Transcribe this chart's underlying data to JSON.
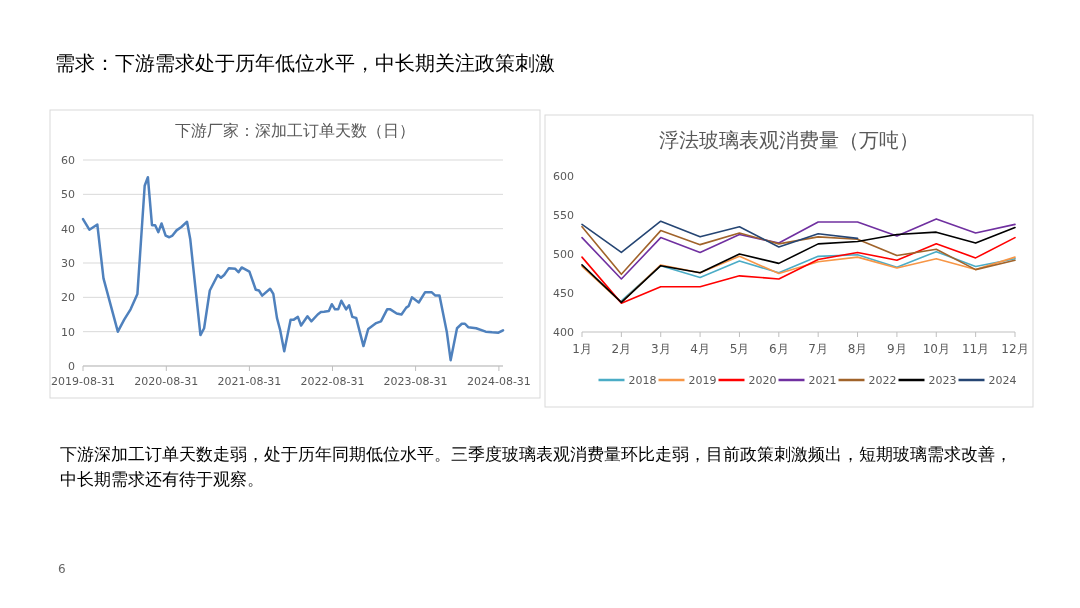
{
  "chart_data": [
    {
      "type": "line",
      "title": "下游厂家：深加工订单天数（日）",
      "annotations": [
        "需求：下游需求处于历年低位水平，中长期关注政策刺激"
      ],
      "x": [
        "2019-08-31",
        "2019-09-28",
        "2019-11-02",
        "2019-11-29",
        "2020-01-31",
        "2020-02-28",
        "2020-03-27",
        "2020-04-26",
        "2020-05-28",
        "2020-06-11",
        "2020-06-29",
        "2020-07-13",
        "2020-07-27",
        "2020-08-10",
        "2020-08-28",
        "2020-09-13",
        "2020-09-27",
        "2020-10-15",
        "2020-11-05",
        "2020-11-30",
        "2020-12-14",
        "2021-01-28",
        "2021-02-13",
        "2021-03-10",
        "2021-04-14",
        "2021-04-28",
        "2021-05-12",
        "2021-06-02",
        "2021-06-30",
        "2021-07-14",
        "2021-07-28",
        "2021-08-31",
        "2021-09-28",
        "2021-10-12",
        "2021-10-26",
        "2021-11-30",
        "2021-12-14",
        "2021-12-30",
        "2022-01-13",
        "2022-01-31",
        "2022-02-28",
        "2022-03-14",
        "2022-04-01",
        "2022-04-15",
        "2022-05-13",
        "2022-05-30",
        "2022-06-27",
        "2022-07-11",
        "2022-07-25",
        "2022-08-15",
        "2022-08-28",
        "2022-09-11",
        "2022-09-25",
        "2022-10-09",
        "2022-10-30",
        "2022-11-12",
        "2022-11-26",
        "2022-12-13",
        "2023-01-14",
        "2023-02-04",
        "2023-03-11",
        "2023-04-01",
        "2023-04-28",
        "2023-05-12",
        "2023-06-09",
        "2023-06-30",
        "2023-07-21",
        "2023-08-01",
        "2023-08-15",
        "2023-09-14",
        "2023-10-12",
        "2023-11-09",
        "2023-11-26",
        "2023-12-14",
        "2024-01-15",
        "2024-02-01",
        "2024-02-29",
        "2024-03-21",
        "2024-04-04",
        "2024-04-18",
        "2024-05-23",
        "2024-07-04",
        "2024-08-01",
        "2024-08-29",
        "2024-09-18"
      ],
      "series": [
        {
          "color": "#4f81bd",
          "values": [
            42.8,
            39.7,
            41.2,
            25.5,
            10,
            13.5,
            16.5,
            21,
            52.5,
            55,
            41,
            41,
            39,
            41.5,
            38,
            37.5,
            38,
            39.5,
            40.5,
            42,
            37,
            9,
            11,
            22,
            26.5,
            25.7,
            26.5,
            28.5,
            28.3,
            27.3,
            28.7,
            27.5,
            22.2,
            22,
            20.5,
            22.5,
            21,
            14,
            10.5,
            4.3,
            13.5,
            13.5,
            14.3,
            11.8,
            14.5,
            13,
            15,
            15.7,
            15.8,
            16,
            18,
            16.5,
            16.5,
            19,
            16.5,
            17.7,
            14.3,
            14,
            5.8,
            10.8,
            12.5,
            13,
            16.5,
            16.5,
            15.3,
            15,
            17,
            17.5,
            20,
            18.5,
            21.5,
            21.5,
            20.5,
            20.5,
            10,
            1.7,
            11,
            12.3,
            12.3,
            11.3,
            11,
            10,
            9.8,
            9.7,
            10.4
          ]
        }
      ],
      "xlim": [
        "2019-08-31",
        "2024-09-18"
      ],
      "xticks": [
        {
          "value": "2019-08-31",
          "label": "2019-08-31"
        },
        {
          "value": "2020-08-31",
          "label": "2020-08-31"
        },
        {
          "value": "2021-08-31",
          "label": "2021-08-31"
        },
        {
          "value": "2022-08-31",
          "label": "2022-08-31"
        },
        {
          "value": "2023-08-31",
          "label": "2023-08-31"
        },
        {
          "value": "2024-08-31",
          "label": "2024-08-31"
        }
      ],
      "ylim": [
        0,
        60
      ],
      "yticks": [
        0,
        10,
        20,
        30,
        40,
        50,
        60
      ],
      "grid": "y",
      "legend": false
    },
    {
      "type": "line",
      "title": "浮法玻璃表观消费量（万吨）",
      "annotations": [
        "下游深加工订单天数走弱，处于历年同期低位水平。三季度玻璃表观消费量环比走弱，目前政策刺激频出，短期玻璃需求改善，中长期需求还有待于观察。",
        "6"
      ],
      "categories": [
        "1月",
        "2月",
        "3月",
        "4月",
        "5月",
        "6月",
        "7月",
        "8月",
        "9月",
        "10月",
        "11月",
        "12月"
      ],
      "series": [
        {
          "name": "2018",
          "color": "#4bacc6",
          "values": [
            null,
            440,
            485,
            470,
            491,
            476,
            497,
            499,
            483,
            503,
            484,
            494
          ]
        },
        {
          "name": "2019",
          "color": "#f79646",
          "values": [
            484,
            438,
            486,
            476,
            497,
            475,
            490,
            496,
            482,
            494,
            480,
            496
          ]
        },
        {
          "name": "2020",
          "color": "#ff0000",
          "values": [
            496,
            437,
            458,
            458,
            472,
            468,
            493,
            502,
            492,
            513,
            495,
            521
          ]
        },
        {
          "name": "2021",
          "color": "#7030a0",
          "values": [
            521,
            468,
            521,
            502,
            525,
            514,
            541,
            541,
            523,
            545,
            527,
            538
          ]
        },
        {
          "name": "2022",
          "color": "#a0632a",
          "values": [
            535,
            474,
            530,
            512,
            527,
            513,
            522,
            519,
            498,
            506,
            480,
            492
          ]
        },
        {
          "name": "2023",
          "color": "#000000",
          "values": [
            486,
            438,
            485,
            476,
            500,
            488,
            513,
            516,
            525,
            528,
            514,
            534
          ]
        },
        {
          "name": "2024",
          "color": "#254573",
          "values": [
            538,
            502,
            542,
            522,
            535,
            509,
            526,
            520,
            null,
            null,
            null,
            null
          ]
        }
      ],
      "ylim": [
        400,
        600
      ],
      "yticks": [
        400,
        450,
        500,
        550,
        600
      ],
      "grid": false,
      "legend": "bottom"
    }
  ]
}
